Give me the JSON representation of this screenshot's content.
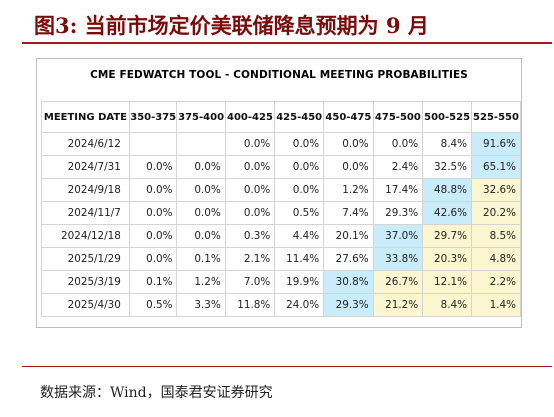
{
  "figure_title": "图3: 当前市场定价美联储降息预期为 9 月",
  "table": {
    "title": "CME FEDWATCH TOOL - CONDITIONAL MEETING PROBABILITIES",
    "columns": [
      "MEETING DATE",
      "350-375",
      "375-400",
      "400-425",
      "425-450",
      "450-475",
      "475-500",
      "500-525",
      "525-550"
    ],
    "rows": [
      {
        "date": "2024/6/12",
        "cells": [
          "",
          "",
          "0.0%",
          "0.0%",
          "0.0%",
          "0.0%",
          "8.4%",
          "91.6%"
        ],
        "shade": [
          "",
          "",
          "",
          "",
          "",
          "",
          "",
          "blue"
        ]
      },
      {
        "date": "2024/7/31",
        "cells": [
          "0.0%",
          "0.0%",
          "0.0%",
          "0.0%",
          "0.0%",
          "2.4%",
          "32.5%",
          "65.1%"
        ],
        "shade": [
          "",
          "",
          "",
          "",
          "",
          "",
          "",
          "blue"
        ]
      },
      {
        "date": "2024/9/18",
        "cells": [
          "0.0%",
          "0.0%",
          "0.0%",
          "0.0%",
          "1.2%",
          "17.4%",
          "48.8%",
          "32.6%"
        ],
        "shade": [
          "",
          "",
          "",
          "",
          "",
          "",
          "blue",
          "yellow"
        ]
      },
      {
        "date": "2024/11/7",
        "cells": [
          "0.0%",
          "0.0%",
          "0.0%",
          "0.5%",
          "7.4%",
          "29.3%",
          "42.6%",
          "20.2%"
        ],
        "shade": [
          "",
          "",
          "",
          "",
          "",
          "",
          "blue",
          "yellow"
        ]
      },
      {
        "date": "2024/12/18",
        "cells": [
          "0.0%",
          "0.0%",
          "0.3%",
          "4.4%",
          "20.1%",
          "37.0%",
          "29.7%",
          "8.5%"
        ],
        "shade": [
          "",
          "",
          "",
          "",
          "",
          "blue",
          "yellow",
          "yellow"
        ]
      },
      {
        "date": "2025/1/29",
        "cells": [
          "0.0%",
          "0.1%",
          "2.1%",
          "11.4%",
          "27.6%",
          "33.8%",
          "20.3%",
          "4.8%"
        ],
        "shade": [
          "",
          "",
          "",
          "",
          "",
          "blue",
          "yellow",
          "yellow"
        ]
      },
      {
        "date": "2025/3/19",
        "cells": [
          "0.1%",
          "1.2%",
          "7.0%",
          "19.9%",
          "30.8%",
          "26.7%",
          "12.1%",
          "2.2%"
        ],
        "shade": [
          "",
          "",
          "",
          "",
          "blue",
          "yellow",
          "yellow",
          "yellow"
        ]
      },
      {
        "date": "2025/4/30",
        "cells": [
          "0.5%",
          "3.3%",
          "11.8%",
          "24.0%",
          "29.3%",
          "21.2%",
          "8.4%",
          "1.4%"
        ],
        "shade": [
          "",
          "",
          "",
          "",
          "blue",
          "yellow",
          "yellow",
          "yellow"
        ]
      }
    ]
  },
  "colors": {
    "highlight_blue": "#c9ecfb",
    "highlight_yellow": "#fbf6cf",
    "title_red": "#7a0b0b"
  },
  "source": "数据来源：Wind，国泰君安证券研究"
}
